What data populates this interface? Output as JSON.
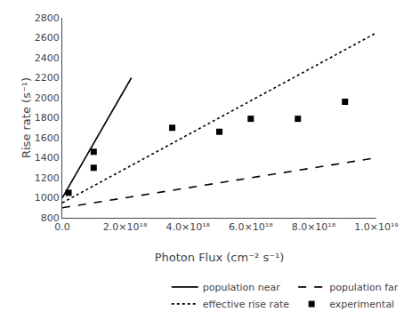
{
  "chart_data": {
    "type": "line",
    "xlabel": "Photon Flux (cm⁻² s⁻¹)",
    "ylabel": "Rise rate (s⁻¹)",
    "xlim": [
      0,
      1e+19
    ],
    "ylim": [
      800,
      2800
    ],
    "xticks": [
      {
        "value": 0,
        "label": "0.0"
      },
      {
        "value": 2e+18,
        "label": "2.0×10¹⁸"
      },
      {
        "value": 4e+18,
        "label": "4.0×10¹⁸"
      },
      {
        "value": 6e+18,
        "label": "6.0×10¹⁸"
      },
      {
        "value": 8e+18,
        "label": "8.0×10¹⁸"
      },
      {
        "value": 1e+19,
        "label": "1.0×10¹⁹"
      }
    ],
    "yticks": [
      800,
      1000,
      1200,
      1400,
      1600,
      1800,
      2000,
      2200,
      2400,
      2600,
      2800
    ],
    "grid": false,
    "legend": "lower right",
    "series": [
      {
        "name": "population near",
        "type": "line",
        "color": "black",
        "line_style": "solid",
        "x": [
          0,
          2.2e+18
        ],
        "values": [
          1000,
          2200
        ]
      },
      {
        "name": "population far",
        "type": "line",
        "color": "black",
        "line_style": "dashed",
        "x": [
          0,
          1e+19
        ],
        "values": [
          900,
          1400
        ]
      },
      {
        "name": "effective rise rate",
        "type": "line",
        "color": "black",
        "line_style": "dotted",
        "x": [
          0,
          1e+19
        ],
        "values": [
          950,
          2650
        ]
      },
      {
        "name": "experimental",
        "type": "scatter",
        "color": "black",
        "marker": "square",
        "x": [
          2e+17,
          1e+18,
          1e+18,
          3.5e+18,
          5e+18,
          6e+18,
          7.5e+18,
          9e+18
        ],
        "values": [
          1050,
          1300,
          1460,
          1700,
          1660,
          1790,
          1790,
          1960
        ]
      }
    ]
  }
}
